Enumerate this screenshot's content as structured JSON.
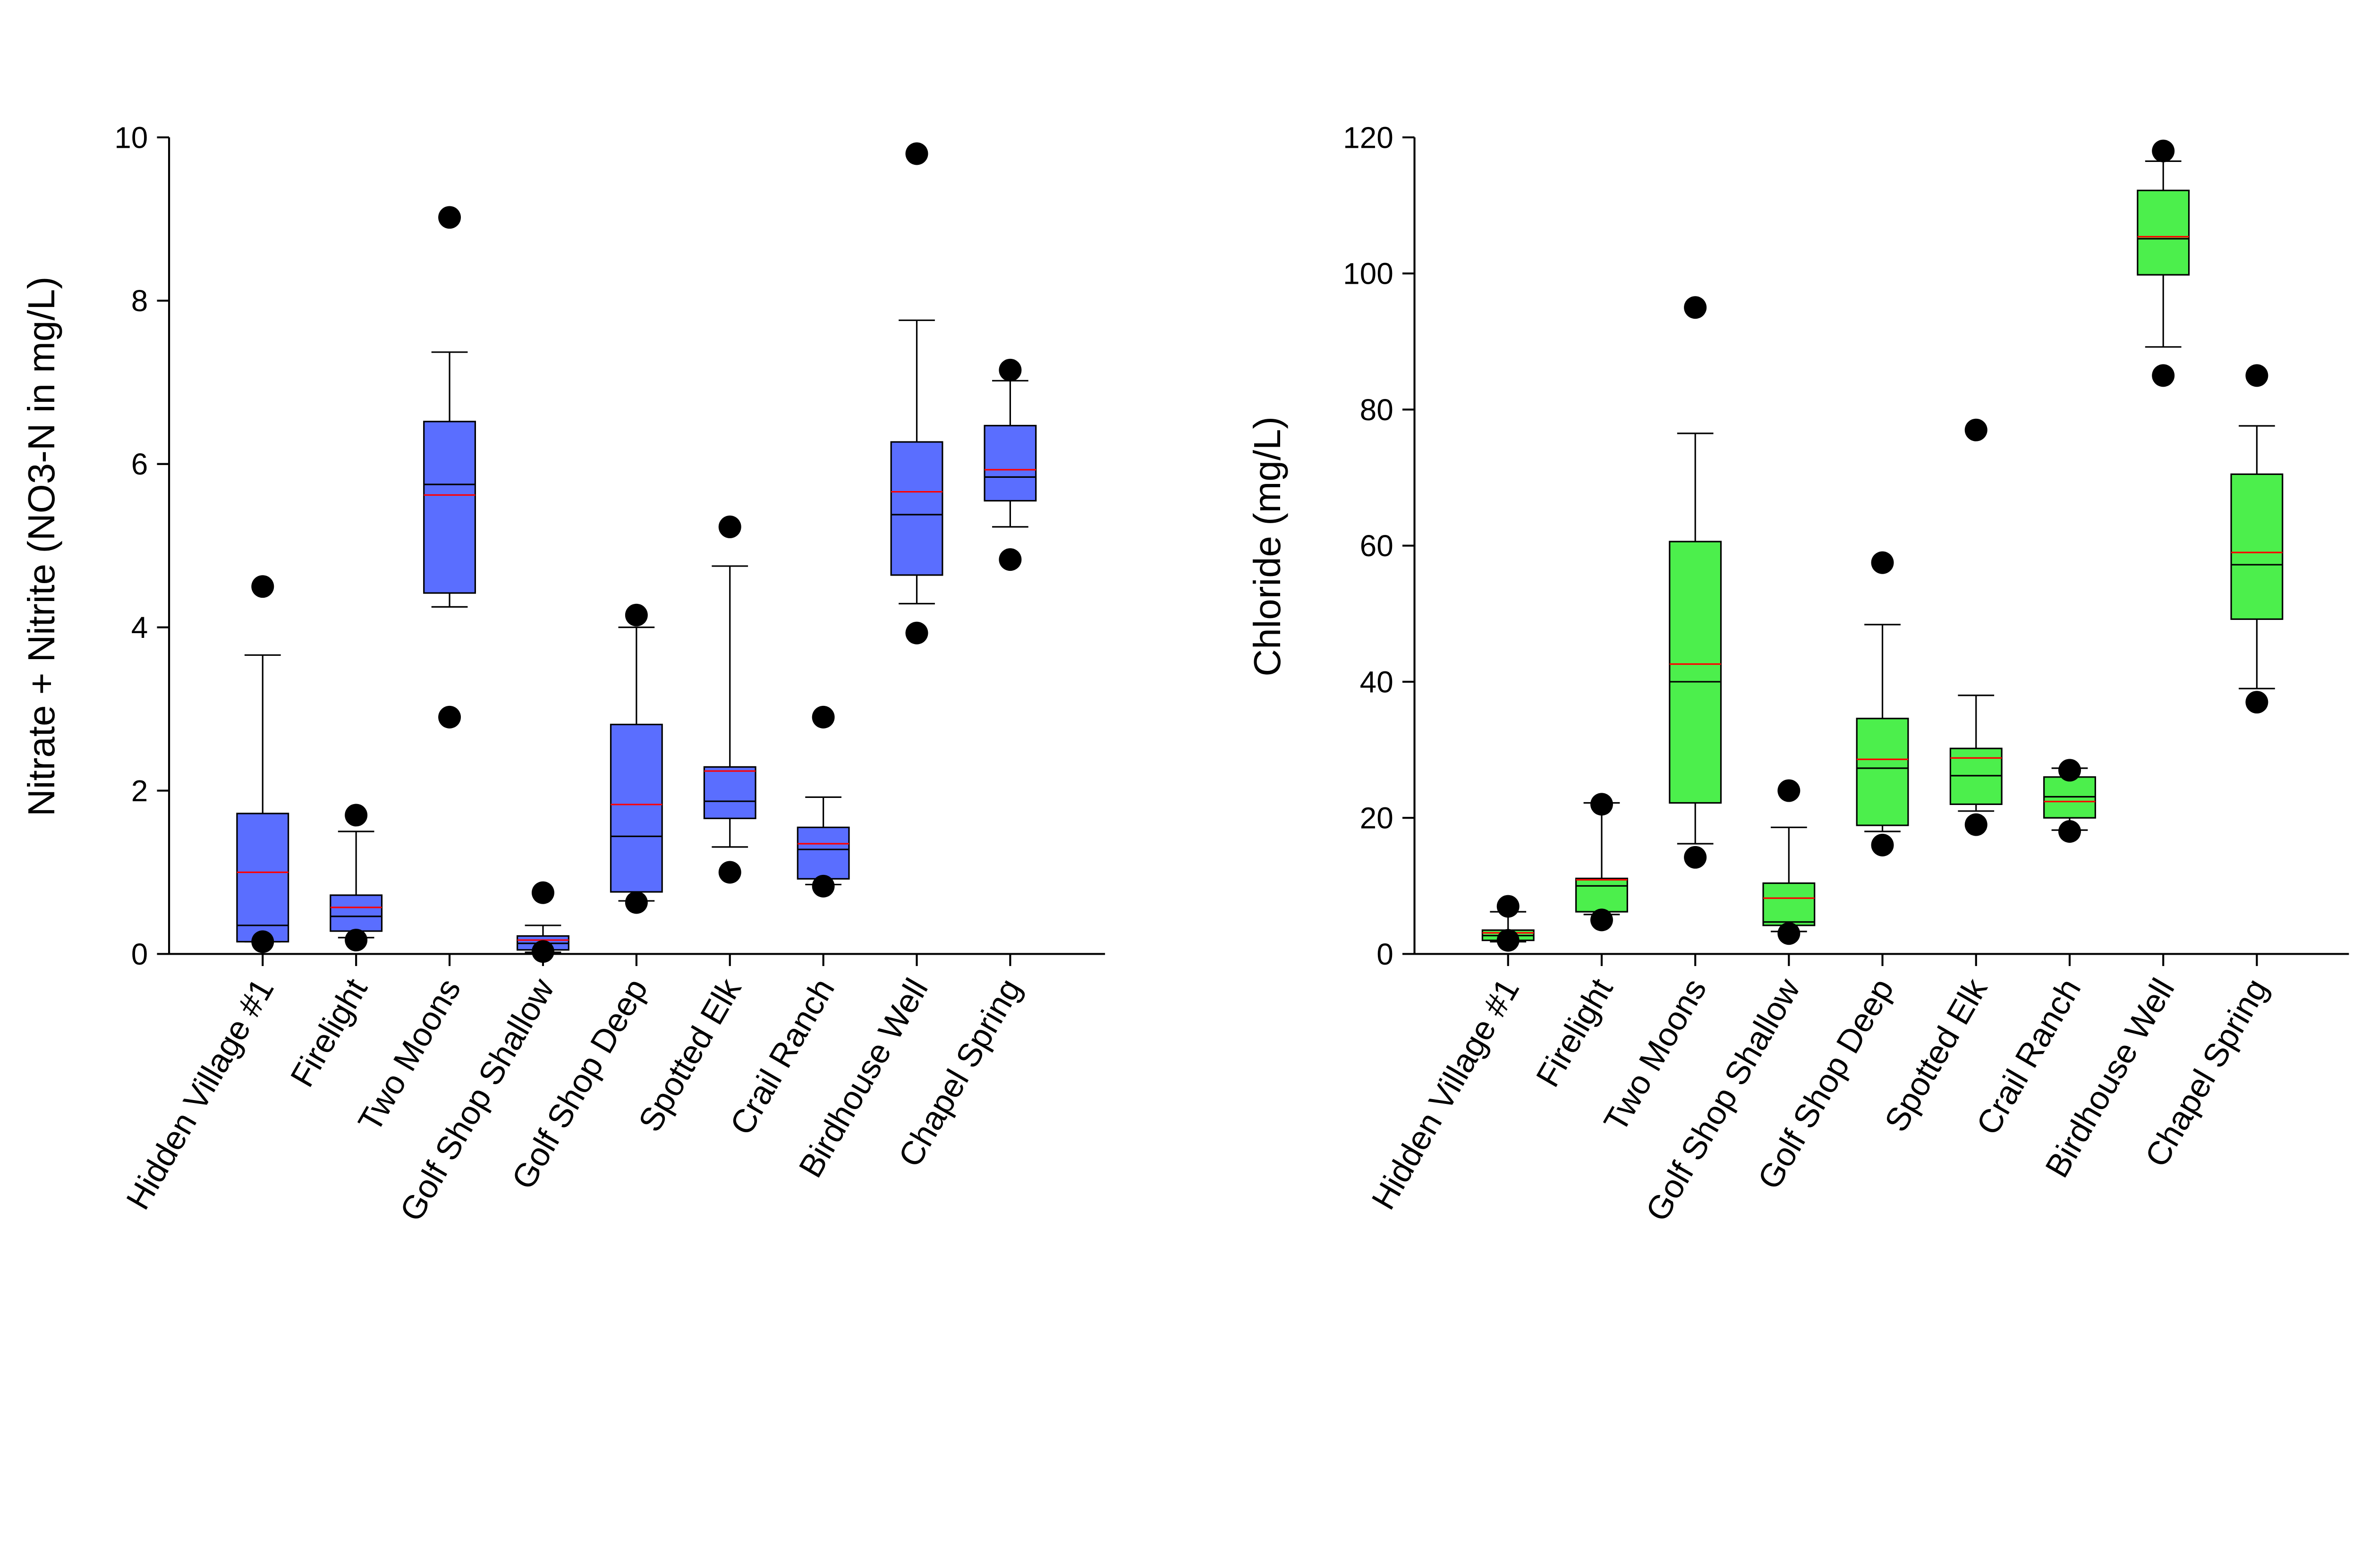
{
  "chart_data": [
    {
      "type": "box",
      "title": "",
      "xlabel": "",
      "ylabel": "Nitrate + Nitrite (NO3-N in mg/L)",
      "ylim": [
        0,
        10
      ],
      "yticks": [
        0,
        2,
        4,
        6,
        8,
        10
      ],
      "grid": false,
      "box_color": "#5a6eff",
      "mean_color": "#ff0000",
      "median_color": "#000000",
      "categories": [
        "Hidden Village #1",
        "Firelight",
        "Two Moons",
        "Golf Shop Shallow",
        "Golf Shop Deep",
        "Spotted Elk",
        "Crail Ranch",
        "Birdhouse Well",
        "Chapel Spring"
      ],
      "boxes": [
        {
          "whisker_low": 0.15,
          "q1": 0.15,
          "median": 0.35,
          "mean": 1.0,
          "q3": 1.72,
          "whisker_high": 3.66,
          "outliers": [
            4.5,
            0.15
          ]
        },
        {
          "whisker_low": 0.2,
          "q1": 0.28,
          "median": 0.46,
          "mean": 0.57,
          "q3": 0.72,
          "whisker_high": 1.5,
          "outliers": [
            1.7,
            0.17
          ]
        },
        {
          "whisker_low": 4.25,
          "q1": 4.42,
          "median": 5.75,
          "mean": 5.62,
          "q3": 6.52,
          "whisker_high": 7.37,
          "outliers": [
            9.02,
            2.9
          ]
        },
        {
          "whisker_low": 0.02,
          "q1": 0.05,
          "median": 0.13,
          "mean": 0.17,
          "q3": 0.22,
          "whisker_high": 0.35,
          "outliers": [
            0.75,
            0.03
          ]
        },
        {
          "whisker_low": 0.65,
          "q1": 0.76,
          "median": 1.44,
          "mean": 1.83,
          "q3": 2.81,
          "whisker_high": 4.0,
          "outliers": [
            4.15,
            0.63
          ]
        },
        {
          "whisker_low": 1.31,
          "q1": 1.66,
          "median": 1.87,
          "mean": 2.24,
          "q3": 2.29,
          "whisker_high": 4.75,
          "outliers": [
            5.23,
            1.0
          ]
        },
        {
          "whisker_low": 0.85,
          "q1": 0.92,
          "median": 1.28,
          "mean": 1.35,
          "q3": 1.55,
          "whisker_high": 1.92,
          "outliers": [
            2.9,
            0.83
          ]
        },
        {
          "whisker_low": 4.29,
          "q1": 4.64,
          "median": 5.38,
          "mean": 5.66,
          "q3": 6.27,
          "whisker_high": 7.76,
          "outliers": [
            9.8,
            3.93
          ]
        },
        {
          "whisker_low": 5.23,
          "q1": 5.55,
          "median": 5.84,
          "mean": 5.93,
          "q3": 6.47,
          "whisker_high": 7.02,
          "outliers": [
            7.15,
            4.83
          ]
        }
      ]
    },
    {
      "type": "box",
      "title": "",
      "xlabel": "",
      "ylabel": "Chloride (mg/L)",
      "ylim": [
        0,
        120
      ],
      "yticks": [
        0,
        20,
        40,
        60,
        80,
        100,
        120
      ],
      "grid": false,
      "box_color": "#4cef4c",
      "mean_color": "#ff0000",
      "median_color": "#000000",
      "categories": [
        "Hidden Village #1",
        "Firelight",
        "Two Moons",
        "Golf Shop Shallow",
        "Golf Shop Deep",
        "Spotted Elk",
        "Crail Ranch",
        "Birdhouse Well",
        "Chapel Spring"
      ],
      "boxes": [
        {
          "whisker_low": 1.8,
          "q1": 2.0,
          "median": 2.7,
          "mean": 3.1,
          "q3": 3.5,
          "whisker_high": 6.2,
          "outliers": [
            7,
            2
          ]
        },
        {
          "whisker_low": 5.8,
          "q1": 6.2,
          "median": 10.0,
          "mean": 10.9,
          "q3": 11.1,
          "whisker_high": 22.2,
          "outliers": [
            22,
            5
          ]
        },
        {
          "whisker_low": 16.2,
          "q1": 22.2,
          "median": 40.0,
          "mean": 42.6,
          "q3": 60.6,
          "whisker_high": 76.5,
          "outliers": [
            95,
            14.2
          ]
        },
        {
          "whisker_low": 3.3,
          "q1": 4.2,
          "median": 4.7,
          "mean": 8.2,
          "q3": 10.4,
          "whisker_high": 18.6,
          "outliers": [
            24,
            3
          ]
        },
        {
          "whisker_low": 18.0,
          "q1": 18.9,
          "median": 27.3,
          "mean": 28.6,
          "q3": 34.6,
          "whisker_high": 48.4,
          "outliers": [
            57.5,
            16
          ]
        },
        {
          "whisker_low": 21.0,
          "q1": 22.0,
          "median": 26.2,
          "mean": 28.8,
          "q3": 30.2,
          "whisker_high": 38.0,
          "outliers": [
            77,
            19
          ]
        },
        {
          "whisker_low": 18.2,
          "q1": 20.0,
          "median": 23.1,
          "mean": 22.4,
          "q3": 26.0,
          "whisker_high": 27.3,
          "outliers": [
            27,
            18
          ]
        },
        {
          "whisker_low": 89.2,
          "q1": 99.8,
          "median": 105.1,
          "mean": 105.4,
          "q3": 112.2,
          "whisker_high": 116.5,
          "outliers": [
            118,
            85
          ]
        },
        {
          "whisker_low": 39.0,
          "q1": 49.2,
          "median": 57.2,
          "mean": 59.0,
          "q3": 70.5,
          "whisker_high": 77.6,
          "outliers": [
            85,
            37
          ]
        }
      ]
    }
  ]
}
